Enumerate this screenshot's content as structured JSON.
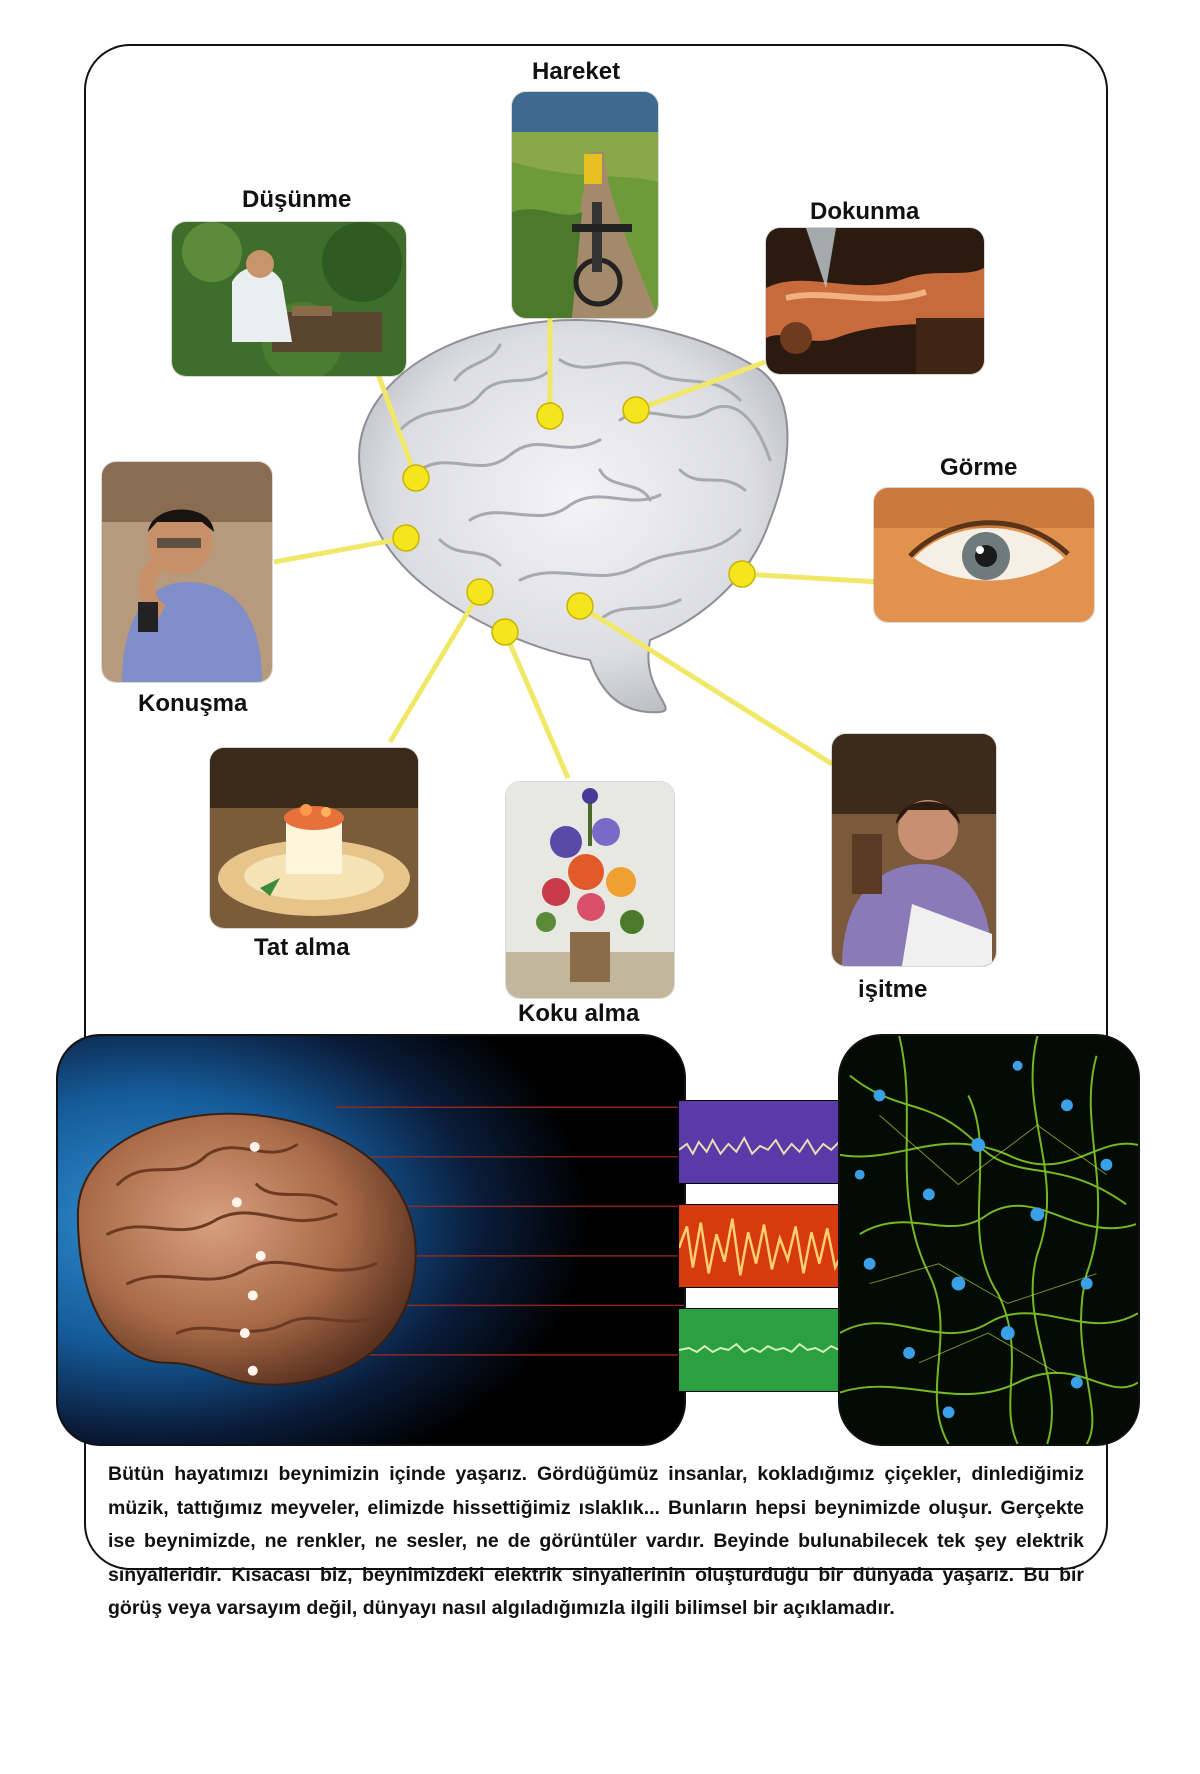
{
  "labels": {
    "hareket": "Hareket",
    "dusunme": "Düşünme",
    "dokunma": "Dokunma",
    "gorme": "Görme",
    "konusma": "Konuşma",
    "tat_alma": "Tat alma",
    "koku_alma": "Koku alma",
    "isitme": "işitme"
  },
  "paragraph": "Bütün hayatımızı beynimizin içinde yaşarız. Gördüğümüz insanlar, kokladığımız çiçekler, dinlediğimiz müzik, tattığımız meyveler, elimizde hissettiğimiz ıslaklık... Bunların hepsi beynimizde oluşur. Gerçekte ise beynimizde, ne renkler, ne sesler, ne de görüntüler vardır. Beyinde bulunabilecek tek şey elektrik sinyalleridir. Kısacası biz, beynimizdeki elektrik sinyallerinin oluşturduğu bir dünyada yaşarız. Bu bir görüş veya varsayım değil, dünyayı nasıl algıladığımızla ilgili bilimsel bir açıklamadır.",
  "colors": {
    "connector": "#f1e86a",
    "node": "#f5e51c",
    "wave_purple": "#5a3aa8",
    "wave_red": "#d83a10",
    "wave_green": "#2aa040"
  }
}
